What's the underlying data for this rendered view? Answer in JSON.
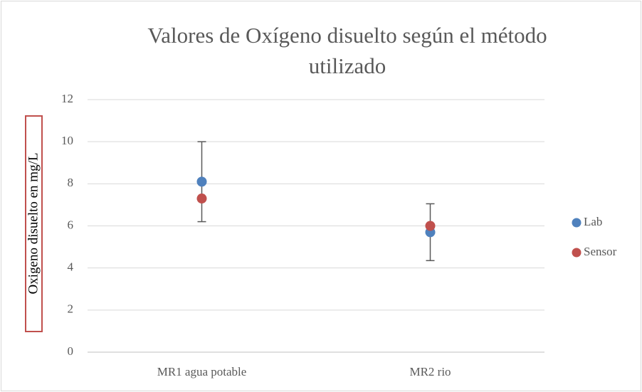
{
  "chart_data": {
    "type": "scatter",
    "title": "Valores de Oxígeno disuelto según el método utilizado",
    "y_label": "Oxigeno disuelto en mg/L",
    "categories": [
      "MR1 agua potable",
      "MR2 rio"
    ],
    "series": [
      {
        "name": "Lab",
        "color": "#4f81bd",
        "values": [
          8.1,
          5.7
        ],
        "errors": [
          1.9,
          1.35
        ]
      },
      {
        "name": "Sensor",
        "color": "#c0504d",
        "values": [
          7.3,
          6.0
        ]
      }
    ],
    "ylim": [
      0,
      12
    ],
    "yticks": [
      0,
      2,
      4,
      6,
      8,
      10,
      12
    ],
    "grid": true,
    "legend": "right"
  }
}
